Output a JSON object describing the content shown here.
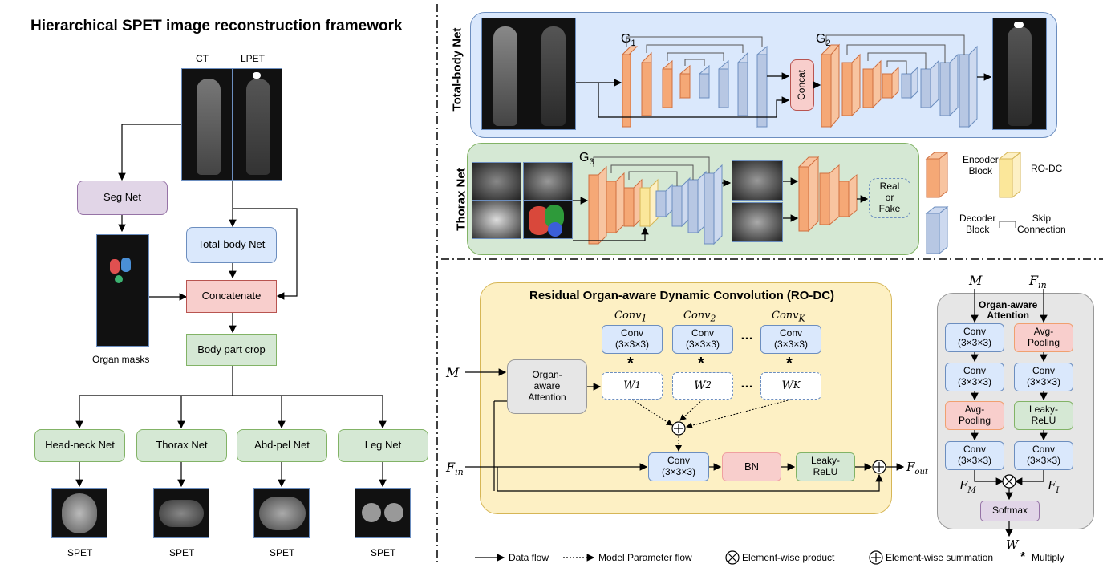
{
  "title": "Hierarchical SPET image reconstruction framework",
  "left": {
    "ct_label": "CT",
    "lpet_label": "LPET",
    "seg_net": "Seg Net",
    "total_body_net": "Total-body Net",
    "concatenate": "Concatenate",
    "body_part_crop": "Body part crop",
    "organ_masks": "Organ masks",
    "nets": [
      "Head-neck Net",
      "Thorax Net",
      "Abd-pel Net",
      "Leg Net"
    ],
    "spet": "SPET"
  },
  "total_body": {
    "label": "Total-body Net",
    "g1": "G",
    "g1_sub": "1",
    "g2": "G",
    "g2_sub": "2",
    "concat": "Concat"
  },
  "thorax": {
    "label": "Thorax Net",
    "g3": "G",
    "g3_sub": "3",
    "real_or_fake": [
      "Real",
      "or",
      "Fake"
    ]
  },
  "legend_blocks": {
    "encoder": [
      "Encoder",
      "Block"
    ],
    "rodc": "RO-DC",
    "decoder": [
      "Decoder",
      "Block"
    ],
    "skip": [
      "Skip",
      "Connection"
    ]
  },
  "rodc": {
    "title": "Residual Organ-aware Dynamic Convolution (RO-DC)",
    "conv": "Conv",
    "kernel": "(3×3×3)",
    "conv_labels": [
      {
        "base": "Conv",
        "sub": "1"
      },
      {
        "base": "Conv",
        "sub": "2"
      },
      {
        "base": "Conv",
        "sub": "K"
      }
    ],
    "weights": [
      {
        "base": "W",
        "sub": "1"
      },
      {
        "base": "W",
        "sub": "2"
      },
      {
        "base": "W",
        "sub": "K"
      }
    ],
    "ellipsis": "…",
    "star": "*",
    "attention": [
      "Organ-",
      "aware",
      "Attention"
    ],
    "bn": "BN",
    "leaky": [
      "Leaky-",
      "ReLU"
    ],
    "M": "M",
    "Fin": {
      "base": "F",
      "sub": "in"
    },
    "Fout": {
      "base": "F",
      "sub": "out"
    }
  },
  "oa": {
    "title": [
      "Organ-aware",
      "Attention"
    ],
    "M": "M",
    "Fin": {
      "base": "F",
      "sub": "in"
    },
    "avg": [
      "Avg-",
      "Pooling"
    ],
    "leaky": [
      "Leaky-",
      "ReLU"
    ],
    "FM": {
      "base": "F",
      "sub": "M"
    },
    "FI": {
      "base": "F",
      "sub": "I"
    },
    "softmax": "Softmax",
    "W": "W"
  },
  "legend": {
    "data_flow": "Data flow",
    "param_flow": "Model Parameter  flow",
    "product": "Element-wise product",
    "summation": "Element-wise summation",
    "multiply": "Multiply"
  },
  "colors": {
    "blue_fill": "#dae8fc",
    "blue_stroke": "#6c8ebf",
    "green_fill": "#d5e8d4",
    "green_stroke": "#82b366",
    "purple_fill": "#e1d5e7",
    "purple_stroke": "#9673a6",
    "red_fill": "#f8cecc",
    "red_stroke": "#b85450",
    "yellow_bg": "#fdf0c4",
    "yellow_stroke": "#d6b656",
    "gray_fill": "#e6e6e6",
    "encoder": "#f5a876",
    "decoder": "#b7c7e3"
  }
}
